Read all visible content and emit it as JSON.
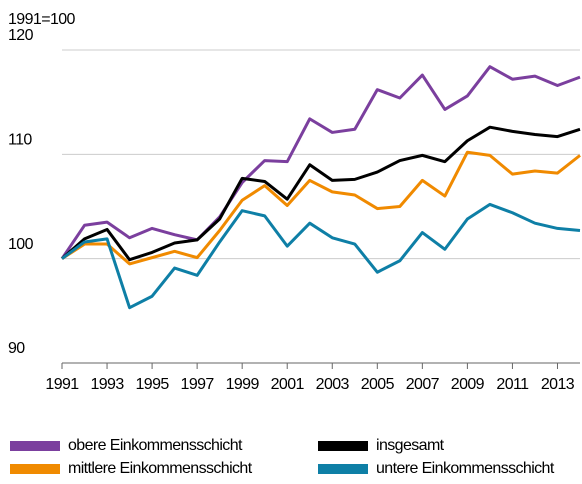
{
  "chart_data": {
    "type": "line",
    "y_unit": "1991=100",
    "x": [
      1991,
      1992,
      1993,
      1994,
      1995,
      1996,
      1997,
      1998,
      1999,
      2000,
      2001,
      2002,
      2003,
      2004,
      2005,
      2006,
      2007,
      2008,
      2009,
      2010,
      2011,
      2012,
      2013,
      2014
    ],
    "xlim": [
      1991,
      2014
    ],
    "xticks": [
      1991,
      1993,
      1995,
      1997,
      1999,
      2001,
      2003,
      2005,
      2007,
      2009,
      2011,
      2013
    ],
    "ylim": [
      90,
      120
    ],
    "yticks": [
      90,
      100,
      110,
      120
    ],
    "grid": true,
    "legend": "bottom",
    "series": [
      {
        "name": "obere Einkommensschicht",
        "color": "#7b3f9e",
        "values": [
          100,
          103.2,
          103.5,
          102,
          102.9,
          102.3,
          101.8,
          104,
          107.3,
          109.4,
          109.3,
          113.4,
          112.1,
          112.4,
          116.2,
          115.4,
          117.6,
          114.3,
          115.6,
          118.4,
          117.2,
          117.5,
          116.6,
          117.4
        ]
      },
      {
        "name": "insgesamt",
        "color": "#000000",
        "values": [
          100,
          101.9,
          102.8,
          99.9,
          100.6,
          101.5,
          101.8,
          103.8,
          107.7,
          107.4,
          105.7,
          109,
          107.5,
          107.6,
          108.3,
          109.4,
          109.9,
          109.3,
          111.3,
          112.6,
          112.2,
          111.9,
          111.7,
          112.4
        ]
      },
      {
        "name": "mittlere Einkommensschicht",
        "color": "#f08a00",
        "values": [
          100,
          101.4,
          101.4,
          99.5,
          100.1,
          100.7,
          100.1,
          102.7,
          105.6,
          107,
          105.1,
          107.5,
          106.4,
          106.1,
          104.8,
          105,
          107.5,
          106,
          110.2,
          109.9,
          108.1,
          108.4,
          108.2,
          109.9
        ]
      },
      {
        "name": "untere Einkommensschicht",
        "color": "#0e7fa6",
        "values": [
          100,
          101.6,
          101.9,
          95.3,
          96.4,
          99.1,
          98.4,
          101.6,
          104.6,
          104.1,
          101.2,
          103.4,
          102,
          101.4,
          98.7,
          99.8,
          102.5,
          100.9,
          103.8,
          105.2,
          104.4,
          103.4,
          102.9,
          102.7
        ]
      }
    ]
  }
}
